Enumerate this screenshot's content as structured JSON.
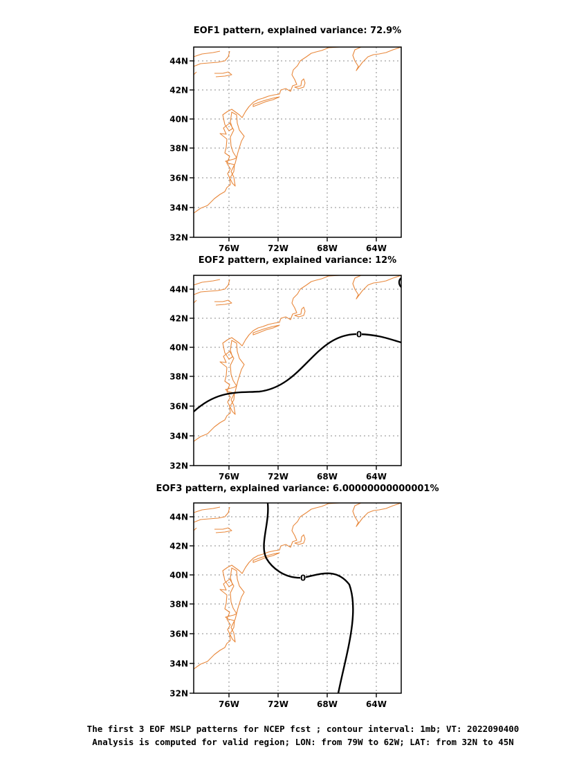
{
  "region": {
    "lon_range": [
      -79,
      -62
    ],
    "lat_range": [
      32,
      45
    ]
  },
  "colors": {
    "coastline": "#e8873a",
    "contour": "#000000",
    "grid": "#888888",
    "background": "#ffffff"
  },
  "lat_ticks": [
    "44N",
    "42N",
    "40N",
    "38N",
    "36N",
    "34N",
    "32N"
  ],
  "lon_ticks": [
    "76W",
    "72W",
    "68W",
    "64W"
  ],
  "panels": [
    {
      "title": "EOF1 pattern, explained variance: 72.9%",
      "contour_labels": []
    },
    {
      "title": "EOF2 pattern, explained variance: 12%",
      "contour_labels": [
        "0"
      ]
    },
    {
      "title": "EOF3 pattern, explained variance: 6.00000000000001%",
      "contour_labels": [
        "0"
      ]
    }
  ],
  "caption": [
    "The first 3 EOF MSLP patterns for NCEP fcst ; contour interval: 1mb; VT: 2022090400",
    "Analysis is computed for valid region; LON: from 79W to 62W; LAT: from 32N to 45N"
  ]
}
